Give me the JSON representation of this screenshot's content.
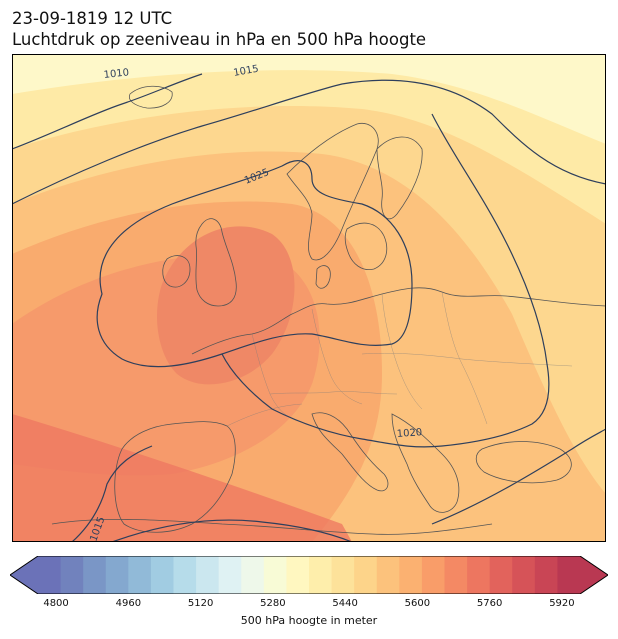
{
  "header": {
    "timestamp": "23-09-1819 12 UTC",
    "subtitle": "Luchtdruk op zeeniveau in hPa en 500 hPa hoogte"
  },
  "map": {
    "region": "Europe",
    "isobar_labels": [
      "1010",
      "1015",
      "1025",
      "1020",
      "1015"
    ],
    "isobar_color": "#2e3f5c",
    "coastline_color": "#555555",
    "shading_colors": [
      "#fef8c9",
      "#feeaa6",
      "#fdd78f",
      "#fcc27d",
      "#f9ab6e",
      "#f69a6b",
      "#ef8866"
    ]
  },
  "colorbar": {
    "label": "500 hPa hoogte in meter",
    "ticks": [
      "4800",
      "4960",
      "5120",
      "5280",
      "5440",
      "5600",
      "5760",
      "5920"
    ],
    "min": 4760,
    "max": 5960,
    "colors": [
      "#6b72b8",
      "#7182bd",
      "#7a96c6",
      "#84a8cf",
      "#91bad8",
      "#a1cce2",
      "#b6dcea",
      "#cbe7ef",
      "#dff2f3",
      "#eef8ea",
      "#f8fbd6",
      "#fff7c0",
      "#feeeab",
      "#fde29a",
      "#fdd48a",
      "#fcc27c",
      "#fbb171",
      "#f99d69",
      "#f48964",
      "#ed7660",
      "#e2635c",
      "#d65358",
      "#c94555",
      "#b93852"
    ]
  }
}
